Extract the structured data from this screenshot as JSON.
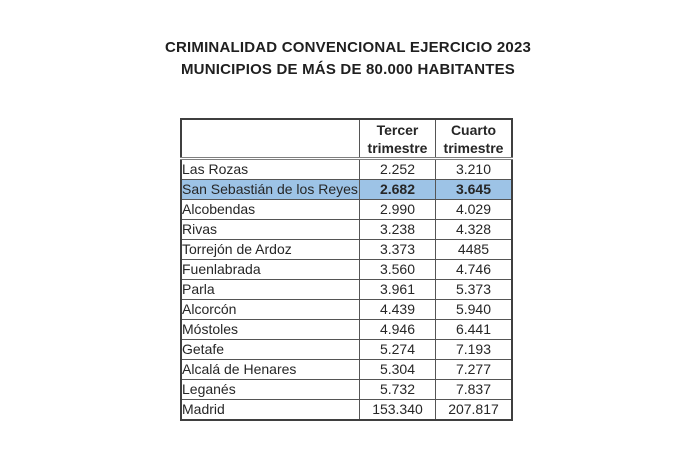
{
  "title": {
    "line1": "CRIMINALIDAD CONVENCIONAL EJERCICIO 2023",
    "line2": "MUNICIPIOS DE MÁS DE 80.000 HABITANTES"
  },
  "table": {
    "headers": {
      "municipality": "",
      "q3": "Tercer\ntrimestre",
      "q4": "Cuarto\ntrimestre"
    },
    "rows": [
      {
        "municipality": "Las Rozas",
        "q3": "2.252",
        "q4": "3.210",
        "highlighted": false
      },
      {
        "municipality": "San Sebastián de los Reyes",
        "q3": "2.682",
        "q4": "3.645",
        "highlighted": true
      },
      {
        "municipality": "Alcobendas",
        "q3": "2.990",
        "q4": "4.029",
        "highlighted": false
      },
      {
        "municipality": "Rivas",
        "q3": "3.238",
        "q4": "4.328",
        "highlighted": false
      },
      {
        "municipality": "Torrejón de Ardoz",
        "q3": "3.373",
        "q4": "4485",
        "highlighted": false
      },
      {
        "municipality": "Fuenlabrada",
        "q3": "3.560",
        "q4": "4.746",
        "highlighted": false
      },
      {
        "municipality": "Parla",
        "q3": "3.961",
        "q4": "5.373",
        "highlighted": false
      },
      {
        "municipality": "Alcorcón",
        "q3": "4.439",
        "q4": "5.940",
        "highlighted": false
      },
      {
        "municipality": "Móstoles",
        "q3": "4.946",
        "q4": "6.441",
        "highlighted": false
      },
      {
        "municipality": "Getafe",
        "q3": "5.274",
        "q4": "7.193",
        "highlighted": false
      },
      {
        "municipality": "Alcalá de Henares",
        "q3": "5.304",
        "q4": "7.277",
        "highlighted": false
      },
      {
        "municipality": "Leganés",
        "q3": "5.732",
        "q4": "7.837",
        "highlighted": false
      },
      {
        "municipality": "Madrid",
        "q3": "153.340",
        "q4": "207.817",
        "highlighted": false
      }
    ]
  },
  "colors": {
    "highlight_row_background": "#9DC3E6",
    "table_border": "#3f3f3f",
    "text": "#262626",
    "page_background": "#ffffff"
  }
}
